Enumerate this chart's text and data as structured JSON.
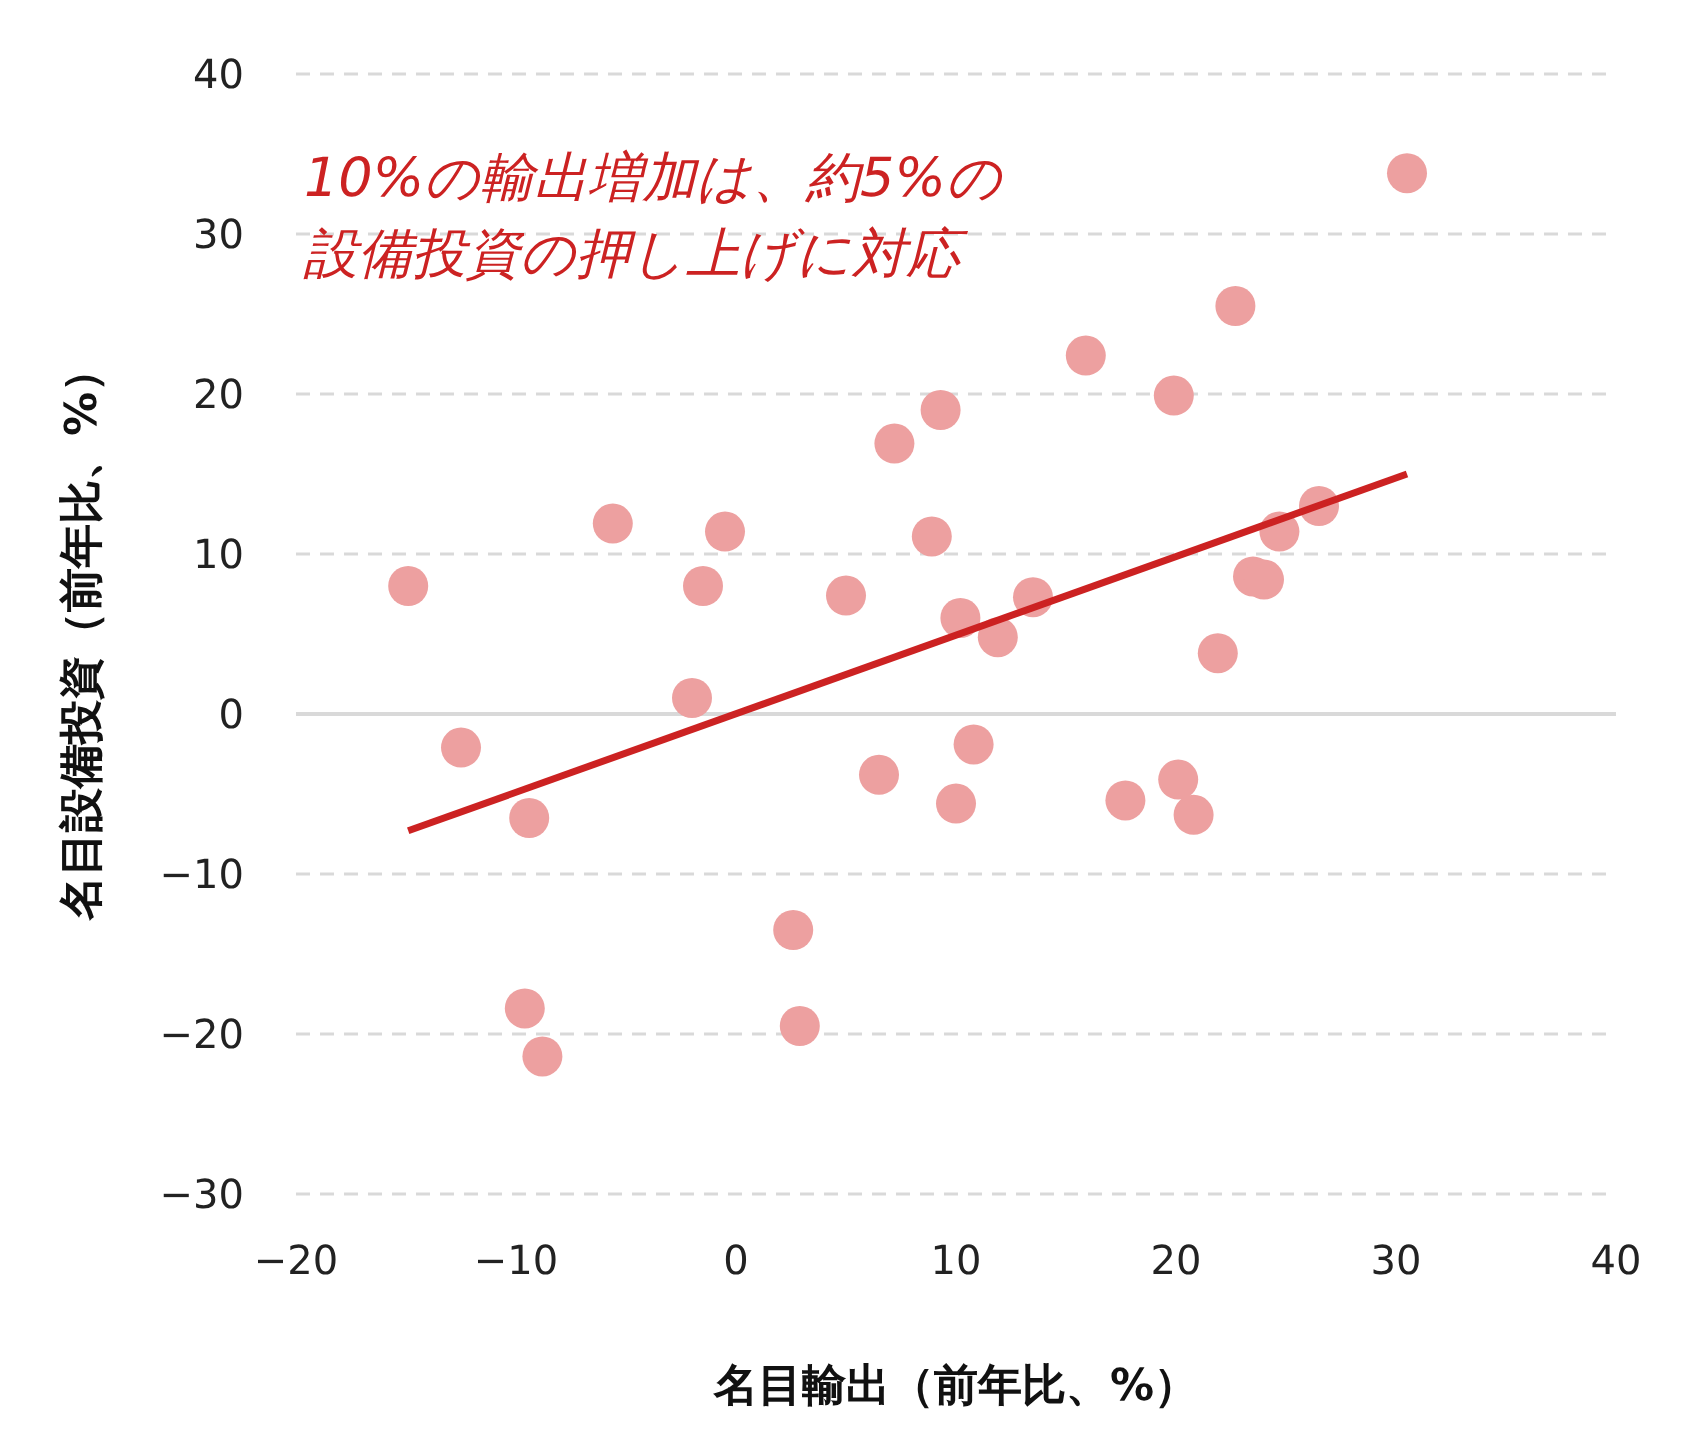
{
  "chart_data": {
    "type": "scatter",
    "xlabel": "名目輸出（前年比、%）",
    "ylabel": "名目設備投資（前年比、%）",
    "annotations": [
      "10%の輸出増加は、約5%の",
      "設備投資の押し上げに対応"
    ],
    "xlim": [
      -20,
      40
    ],
    "xticks": [
      {
        "value": -20,
        "label": "−20"
      },
      {
        "value": -10,
        "label": "−10"
      },
      0,
      10,
      20,
      30,
      40
    ],
    "ylim": [
      -30,
      40
    ],
    "yticks": [
      {
        "value": -30,
        "label": "−30"
      },
      {
        "value": -20,
        "label": "−20"
      },
      {
        "value": -10,
        "label": "−10"
      },
      0,
      10,
      20,
      30,
      40
    ],
    "grid": "y",
    "ref_lines": [
      {
        "axis": "y",
        "value": 0,
        "color": "#d9d9d9",
        "line_style": "solid"
      }
    ],
    "series": [
      {
        "color": "#eda0a0",
        "marker": "circle",
        "x": [
          -14.9,
          -12.5,
          -9.4,
          -9.6,
          -8.8,
          -5.6,
          -1.5,
          -0.5,
          -2.0,
          2.6,
          2.9,
          5.0,
          6.5,
          7.2,
          8.9,
          9.3,
          10.0,
          10.2,
          10.8,
          11.9,
          13.5,
          15.9,
          17.7,
          19.9,
          20.1,
          20.8,
          21.9,
          22.7,
          23.5,
          24.0,
          24.7,
          26.5,
          30.5
        ],
        "values": [
          8.0,
          -2.1,
          -6.5,
          -18.4,
          -21.4,
          11.9,
          8.0,
          11.4,
          1.0,
          -13.5,
          -19.5,
          7.4,
          -3.8,
          16.9,
          11.1,
          19.0,
          -5.6,
          6.0,
          -1.9,
          4.8,
          7.3,
          22.4,
          -5.4,
          19.9,
          -4.1,
          -6.3,
          3.8,
          25.5,
          8.6,
          8.4,
          11.4,
          13.0,
          33.8
        ]
      },
      {
        "type": "line",
        "color": "#cc2222",
        "x": [
          -14.9,
          30.5
        ],
        "values": [
          -7.3,
          15.0
        ]
      }
    ]
  }
}
